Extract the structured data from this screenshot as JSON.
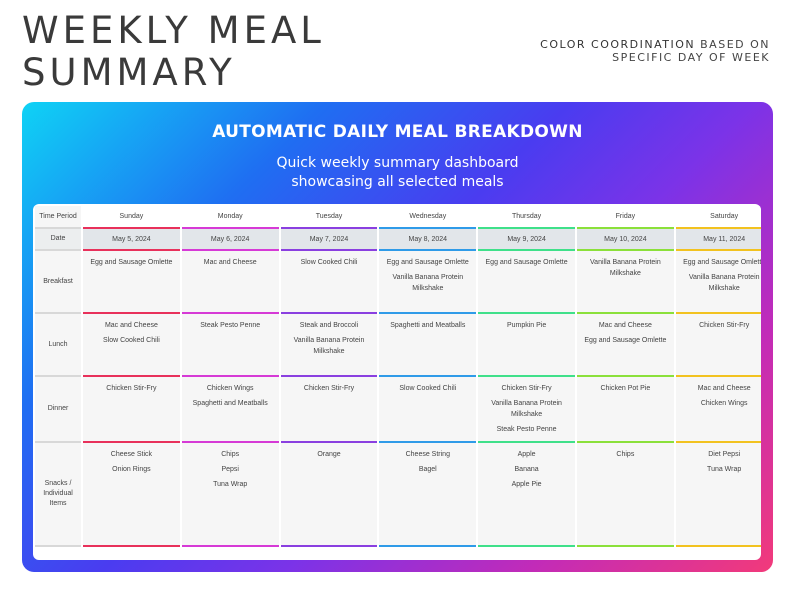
{
  "page": {
    "title_line1": "WEEKLY MEAL",
    "title_line2": "SUMMARY",
    "subtitle_strong": "COLOR COORDINATION",
    "subtitle_rest": " BASED ON",
    "subtitle_line2": "SPECIFIC DAY OF WEEK"
  },
  "panel": {
    "heading": "AUTOMATIC DAILY MEAL BREAKDOWN",
    "sub_line1": "Quick weekly summary dashboard",
    "sub_line2": "showcasing all selected meals"
  },
  "labels": {
    "time_period": "Time Period",
    "date": "Date",
    "breakfast": "Breakfast",
    "lunch": "Lunch",
    "dinner": "Dinner",
    "snacks": "Snacks / Individual Items"
  },
  "days": [
    {
      "name": "Sunday",
      "date": "May 5, 2024",
      "color": "#e8315b",
      "breakfast": [
        "Egg and Sausage Omlette"
      ],
      "lunch": [
        "Mac and Cheese",
        "Slow Cooked Chili"
      ],
      "dinner": [
        "Chicken Stir-Fry"
      ],
      "snacks": [
        "Cheese Stick",
        "Onion Rings"
      ]
    },
    {
      "name": "Monday",
      "date": "May 6, 2024",
      "color": "#d63ad6",
      "breakfast": [
        "Mac and Cheese"
      ],
      "lunch": [
        "Steak Pesto Penne"
      ],
      "dinner": [
        "Chicken Wings",
        "Spaghetti and Meatballs"
      ],
      "snacks": [
        "Chips",
        "Pepsi",
        "Tuna Wrap"
      ]
    },
    {
      "name": "Tuesday",
      "date": "May 7, 2024",
      "color": "#8a3fe0",
      "breakfast": [
        "Slow Cooked Chili"
      ],
      "lunch": [
        "Steak and Broccoli",
        "Vanilla Banana Protein Milkshake"
      ],
      "dinner": [
        "Chicken Stir-Fry"
      ],
      "snacks": [
        "Orange"
      ]
    },
    {
      "name": "Wednesday",
      "date": "May 8, 2024",
      "color": "#2f9be8",
      "breakfast": [
        "Egg and Sausage Omlette",
        "Vanilla Banana Protein Milkshake"
      ],
      "lunch": [
        "Spaghetti and Meatballs"
      ],
      "dinner": [
        "Slow Cooked Chili"
      ],
      "snacks": [
        "Cheese String",
        "Bagel"
      ]
    },
    {
      "name": "Thursday",
      "date": "May 9, 2024",
      "color": "#3fe08a",
      "breakfast": [
        "Egg and Sausage Omlette"
      ],
      "lunch": [
        "Pumpkin Pie"
      ],
      "dinner": [
        "Chicken Stir-Fry",
        "Vanilla Banana Protein Milkshake",
        "Steak Pesto Penne"
      ],
      "snacks": [
        "Apple",
        "Banana",
        "Apple Pie"
      ]
    },
    {
      "name": "Friday",
      "date": "May 10, 2024",
      "color": "#8be03a",
      "breakfast": [
        "Vanilla Banana Protein Milkshake"
      ],
      "lunch": [
        "Mac and Cheese",
        "Egg and Sausage Omlette"
      ],
      "dinner": [
        "Chicken Pot Pie"
      ],
      "snacks": [
        "Chips"
      ]
    },
    {
      "name": "Saturday",
      "date": "May 11, 2024",
      "color": "#f2c21f",
      "breakfast": [
        "Egg and Sausage Omlette",
        "Vanilla Banana Protein Milkshake"
      ],
      "lunch": [
        "Chicken Stir-Fry"
      ],
      "dinner": [
        "Mac and Cheese",
        "Chicken Wings"
      ],
      "snacks": [
        "Diet Pepsi",
        "Tuna Wrap"
      ]
    }
  ]
}
